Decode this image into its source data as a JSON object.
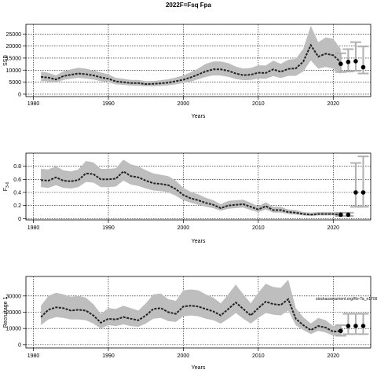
{
  "figure": {
    "title": "2022F=Fsq Fpa",
    "colors": {
      "ci_band": "#bebebe",
      "line": "#222222",
      "forecast": "#b0b0b0",
      "grid": "#000000"
    }
  },
  "chart_data": [
    {
      "type": "line",
      "ylabel": "SSB",
      "xlabel": "Years",
      "xlim": [
        1979,
        2025
      ],
      "ylim": [
        -1000,
        29000
      ],
      "x_ticks": [
        1980,
        1990,
        2000,
        2010,
        2020
      ],
      "y_ticks": [
        0,
        5000,
        10000,
        15000,
        20000,
        25000
      ],
      "grid": true,
      "series": [
        {
          "x": [
            1981,
            1982,
            1983,
            1984,
            1985,
            1986,
            1987,
            1988,
            1989,
            1990,
            1991,
            1992,
            1993,
            1994,
            1995,
            1996,
            1997,
            1998,
            1999,
            2000,
            2001,
            2002,
            2003,
            2004,
            2005,
            2006,
            2007,
            2008,
            2009,
            2010,
            2011,
            2012,
            2013,
            2014,
            2015,
            2016,
            2017,
            2018,
            2019,
            2020,
            2021
          ],
          "y": [
            7200,
            6900,
            6100,
            7500,
            8100,
            8600,
            8300,
            7800,
            7000,
            6400,
            5300,
            5000,
            4600,
            4600,
            4200,
            4300,
            4500,
            4800,
            5400,
            6000,
            7000,
            8200,
            9500,
            10300,
            10300,
            9700,
            8600,
            7900,
            8100,
            8900,
            8800,
            10300,
            9300,
            10500,
            10700,
            13500,
            20400,
            15600,
            16800,
            16200,
            13200
          ],
          "lower": [
            5500,
            5300,
            4800,
            5900,
            6400,
            6800,
            6500,
            6100,
            5400,
            4900,
            4100,
            3900,
            3600,
            3500,
            3300,
            3300,
            3500,
            3700,
            4100,
            4600,
            5300,
            6200,
            7200,
            7800,
            7700,
            7200,
            6300,
            5800,
            5900,
            6500,
            6400,
            7500,
            6700,
            7600,
            7600,
            9400,
            14000,
            10600,
            11300,
            10600,
            8500
          ],
          "upper": [
            9400,
            8900,
            7800,
            9500,
            10300,
            11000,
            10600,
            9900,
            9000,
            8200,
            6800,
            6400,
            5900,
            5900,
            5400,
            5500,
            5800,
            6200,
            6900,
            7800,
            9100,
            10700,
            12600,
            13600,
            13600,
            12900,
            11500,
            10600,
            10900,
            12000,
            11900,
            13900,
            12600,
            14300,
            14700,
            18800,
            28400,
            21600,
            23600,
            23000,
            18800
          ]
        }
      ],
      "forecast": {
        "x": [
          2021,
          2022,
          2023,
          2024
        ],
        "y": [
          12600,
          13400,
          13700,
          11200
        ],
        "lower": [
          9200,
          9400,
          9700,
          8600
        ],
        "upper": [
          17000,
          18700,
          21600,
          19800
        ]
      }
    },
    {
      "type": "line",
      "ylabel": "F",
      "ylabel_sub": "3-6",
      "xlabel": "Years",
      "xlim": [
        1979,
        2025
      ],
      "ylim": [
        -0.02,
        1.0
      ],
      "x_ticks": [
        1980,
        1990,
        2000,
        2010,
        2020
      ],
      "y_ticks": [
        0.0,
        0.2,
        0.4,
        0.6,
        0.8
      ],
      "grid": true,
      "series": [
        {
          "x": [
            1981,
            1982,
            1983,
            1984,
            1985,
            1986,
            1987,
            1988,
            1989,
            1990,
            1991,
            1992,
            1993,
            1994,
            1995,
            1996,
            1997,
            1998,
            1999,
            2000,
            2001,
            2002,
            2003,
            2004,
            2005,
            2006,
            2007,
            2008,
            2009,
            2010,
            2011,
            2012,
            2013,
            2014,
            2015,
            2016,
            2017,
            2018,
            2019,
            2020,
            2021
          ],
          "y": [
            0.59,
            0.58,
            0.63,
            0.58,
            0.57,
            0.59,
            0.69,
            0.68,
            0.6,
            0.6,
            0.61,
            0.72,
            0.65,
            0.63,
            0.58,
            0.54,
            0.53,
            0.51,
            0.45,
            0.36,
            0.31,
            0.28,
            0.24,
            0.21,
            0.16,
            0.2,
            0.21,
            0.22,
            0.18,
            0.14,
            0.19,
            0.13,
            0.13,
            0.1,
            0.09,
            0.07,
            0.06,
            0.07,
            0.07,
            0.07,
            0.06
          ],
          "lower": [
            0.48,
            0.47,
            0.51,
            0.47,
            0.46,
            0.48,
            0.56,
            0.55,
            0.48,
            0.48,
            0.49,
            0.58,
            0.52,
            0.5,
            0.46,
            0.43,
            0.42,
            0.4,
            0.35,
            0.28,
            0.24,
            0.21,
            0.18,
            0.16,
            0.12,
            0.15,
            0.16,
            0.17,
            0.13,
            0.1,
            0.14,
            0.09,
            0.09,
            0.07,
            0.06,
            0.05,
            0.04,
            0.05,
            0.05,
            0.05,
            0.04
          ],
          "upper": [
            0.76,
            0.75,
            0.8,
            0.74,
            0.72,
            0.75,
            0.88,
            0.86,
            0.76,
            0.76,
            0.77,
            0.9,
            0.83,
            0.8,
            0.74,
            0.69,
            0.67,
            0.65,
            0.58,
            0.47,
            0.41,
            0.37,
            0.32,
            0.28,
            0.22,
            0.27,
            0.28,
            0.29,
            0.24,
            0.19,
            0.25,
            0.18,
            0.18,
            0.14,
            0.13,
            0.1,
            0.09,
            0.1,
            0.1,
            0.1,
            0.09
          ]
        }
      ],
      "forecast": {
        "x": [
          2021,
          2022,
          2023,
          2024
        ],
        "y": [
          0.06,
          0.06,
          0.4,
          0.4
        ],
        "lower": [
          0.04,
          0.04,
          0.18,
          0.18
        ],
        "upper": [
          0.09,
          0.09,
          0.85,
          0.95
        ]
      }
    },
    {
      "type": "line",
      "ylabel": "Recruitage 1",
      "xlabel": "Years",
      "xlim": [
        1979,
        2025
      ],
      "ylim": [
        -2000,
        42000
      ],
      "x_ticks": [
        1980,
        1990,
        2000,
        2010,
        2020
      ],
      "y_ticks": [
        0,
        10000,
        20000,
        30000
      ],
      "y_tick_labels": [
        "0",
        "10000",
        "20000",
        "30000"
      ],
      "grid": true,
      "annotation": "stockassessment.org/Re-Ta_n17092_git:ec2c",
      "series": [
        {
          "x": [
            1981,
            1982,
            1983,
            1984,
            1985,
            1986,
            1987,
            1988,
            1989,
            1990,
            1991,
            1992,
            1993,
            1994,
            1995,
            1996,
            1997,
            1998,
            1999,
            2000,
            2001,
            2002,
            2003,
            2004,
            2005,
            2006,
            2007,
            2008,
            2009,
            2010,
            2011,
            2012,
            2013,
            2014,
            2015,
            2016,
            2017,
            2018,
            2019,
            2020,
            2021
          ],
          "y": [
            17000,
            21500,
            23000,
            22500,
            21000,
            21500,
            21000,
            18000,
            13500,
            16000,
            15500,
            17000,
            16000,
            15000,
            18000,
            22000,
            22500,
            20000,
            19000,
            23500,
            24000,
            23500,
            22000,
            20500,
            18000,
            22000,
            26000,
            22000,
            18000,
            22500,
            26500,
            25000,
            24500,
            28000,
            16000,
            12000,
            9000,
            11500,
            10500,
            8000,
            8500
          ],
          "lower": [
            12000,
            15500,
            17000,
            16500,
            15500,
            15500,
            15000,
            13000,
            10000,
            12000,
            11500,
            12500,
            11500,
            11000,
            13000,
            16000,
            16500,
            14500,
            14000,
            17500,
            18000,
            17500,
            16000,
            15000,
            13000,
            16000,
            19500,
            16000,
            13000,
            16500,
            19500,
            18500,
            18000,
            21000,
            12000,
            9000,
            6500,
            8500,
            7500,
            5500,
            5500
          ],
          "upper": [
            24000,
            30000,
            32000,
            31000,
            29500,
            30000,
            29000,
            25000,
            19000,
            22500,
            22000,
            24000,
            22500,
            21000,
            25500,
            31000,
            31500,
            28000,
            27000,
            33500,
            34000,
            33500,
            31000,
            29000,
            25500,
            31000,
            37000,
            31000,
            25500,
            32000,
            37500,
            35500,
            35000,
            40000,
            22500,
            17000,
            13000,
            16500,
            15000,
            11500,
            12000
          ]
        }
      ],
      "forecast": {
        "x": [
          2021,
          2022,
          2023,
          2024
        ],
        "y": [
          8500,
          11500,
          11500,
          11500
        ],
        "lower": [
          5500,
          6500,
          6500,
          6500
        ],
        "upper": [
          12000,
          19000,
          19000,
          19000
        ]
      }
    }
  ]
}
